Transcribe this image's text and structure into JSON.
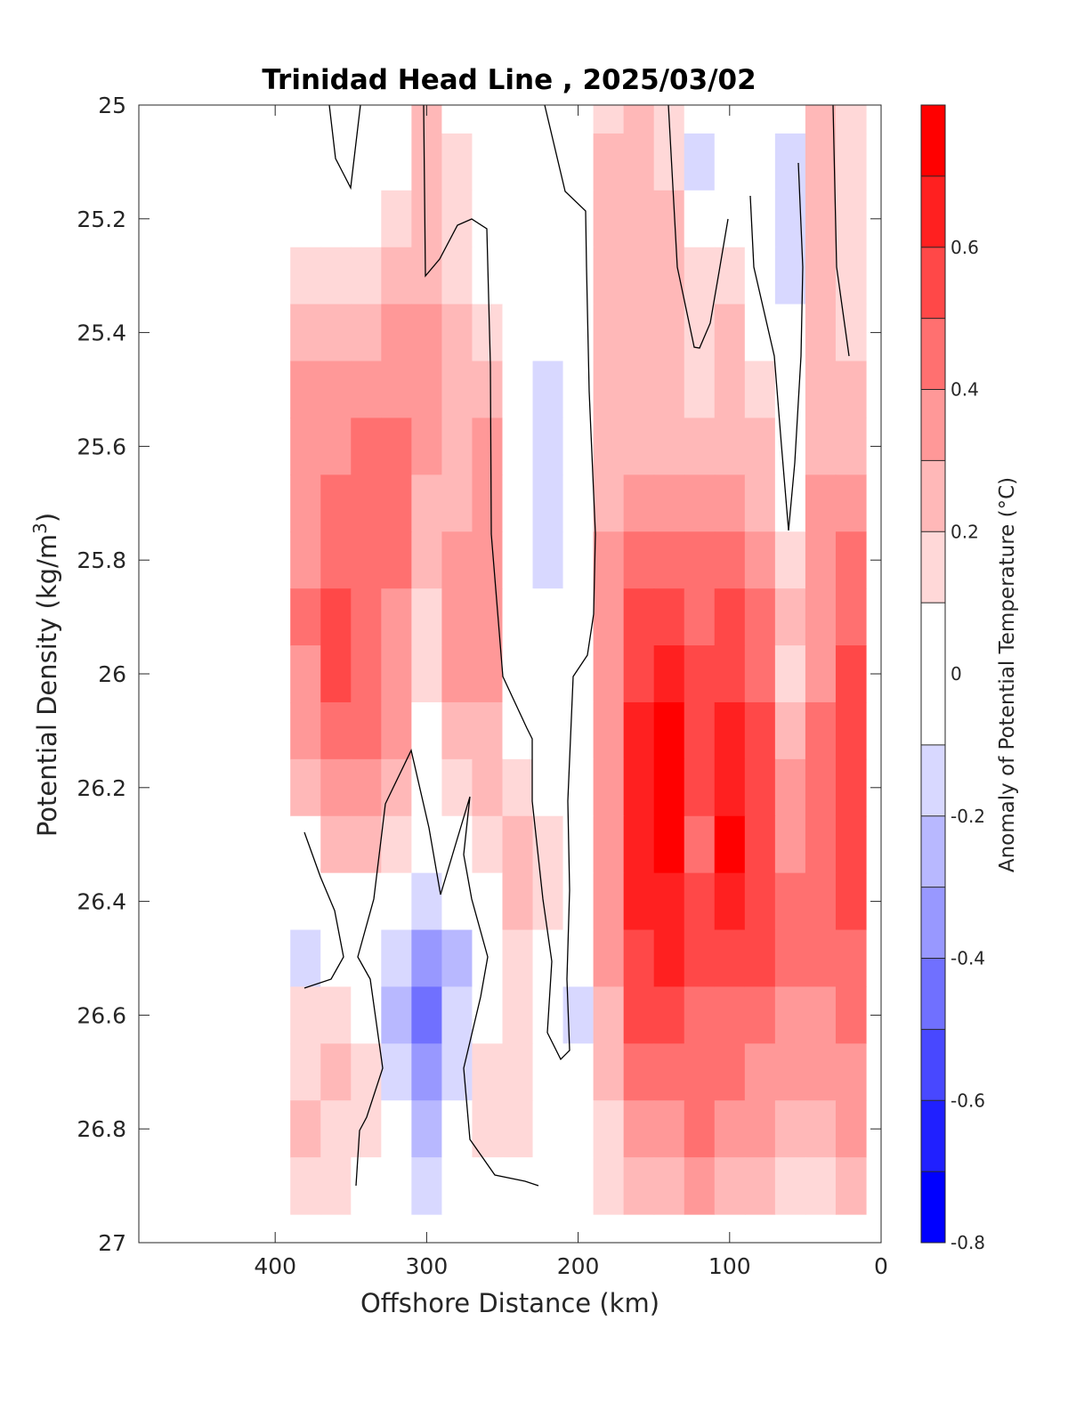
{
  "chart_data": {
    "type": "heatmap",
    "title": "Trinidad Head Line , 2025/03/02",
    "xlabel": "Offshore Distance (km)",
    "ylabel": "Potential Density (kg/m",
    "ylabel_sup": "3",
    "ylabel_close": ")",
    "colorbar_label": "Anomaly of Potential Temperature (°C)",
    "xlim": [
      490,
      0
    ],
    "ylim": [
      27,
      25
    ],
    "x_reversed": true,
    "y_reversed": true,
    "x_ticks": [
      400,
      300,
      200,
      100,
      0
    ],
    "x_tick_labels": [
      "400",
      "300",
      "200",
      "100",
      "0"
    ],
    "y_ticks": [
      25,
      25.2,
      25.4,
      25.6,
      25.8,
      26,
      26.2,
      26.4,
      26.6,
      26.8,
      27
    ],
    "y_tick_labels": [
      "25",
      "25.2",
      "25.4",
      "25.6",
      "25.8",
      "26",
      "26.2",
      "26.4",
      "26.6",
      "26.8",
      "27"
    ],
    "colorbar": {
      "range": [
        -0.8,
        0.8
      ],
      "levels": [
        -0.8,
        -0.7,
        -0.6,
        -0.5,
        -0.4,
        -0.3,
        -0.2,
        -0.1,
        0.1,
        0.2,
        0.3,
        0.4,
        0.5,
        0.6,
        0.7,
        0.8
      ],
      "colors": [
        "#0000ff",
        "#2020ff",
        "#4848ff",
        "#7070ff",
        "#9898ff",
        "#b8b8ff",
        "#d8d8ff",
        "#ffffff",
        "#ffd8d8",
        "#ffb8b8",
        "#ff9898",
        "#ff7070",
        "#ff4848",
        "#ff2020",
        "#ff0000"
      ],
      "tick_values": [
        -0.8,
        -0.6,
        -0.4,
        -0.2,
        0,
        0.2,
        0.4,
        0.6
      ],
      "tick_labels": [
        "-0.8",
        "-0.6",
        "-0.4",
        "-0.2",
        "0",
        "0.2",
        "0.4",
        "0.6"
      ]
    },
    "data_extent": {
      "x": [
        380,
        20
      ],
      "y": [
        25,
        26.9
      ]
    },
    "grid_x": [
      380,
      360,
      340,
      320,
      300,
      280,
      260,
      240,
      220,
      200,
      180,
      160,
      140,
      120,
      100,
      80,
      60,
      40,
      20
    ],
    "grid_y": [
      25.0,
      25.1,
      25.2,
      25.3,
      25.4,
      25.5,
      25.6,
      25.7,
      25.8,
      25.9,
      26.0,
      26.1,
      26.2,
      26.3,
      26.4,
      26.5,
      26.6,
      26.7,
      26.8,
      26.9
    ],
    "grid_values": [
      [
        null,
        null,
        null,
        0.02,
        0.2,
        0.05,
        0.05,
        0.02,
        0,
        0,
        0.15,
        0.2,
        0.18,
        -0.05,
        0.05,
        0.05,
        0.02,
        0.2,
        0.1
      ],
      [
        null,
        null,
        null,
        0.08,
        0.25,
        0.1,
        0.05,
        0.02,
        0,
        0,
        0.2,
        0.2,
        0.15,
        -0.2,
        0,
        0.02,
        -0.15,
        0.2,
        0.1
      ],
      [
        null,
        null,
        null,
        0.1,
        0.25,
        0.1,
        0.05,
        0,
        0,
        0,
        0.2,
        0.25,
        0.2,
        -0.05,
        0.02,
        0.02,
        -0.15,
        0.2,
        0.1
      ],
      [
        0.15,
        0.15,
        0.18,
        0.2,
        0.25,
        0.15,
        0.05,
        0,
        0,
        0,
        0.2,
        0.2,
        0.25,
        0.1,
        0.15,
        0.05,
        -0.15,
        0.2,
        0.1
      ],
      [
        0.2,
        0.25,
        0.25,
        0.3,
        0.3,
        0.2,
        0.15,
        0.05,
        -0.08,
        0,
        0.2,
        0.2,
        0.25,
        0.15,
        0.2,
        0.08,
        0,
        0.2,
        0.15
      ],
      [
        0.3,
        0.3,
        0.3,
        0.35,
        0.3,
        0.22,
        0.25,
        0.05,
        -0.15,
        -0.05,
        0.2,
        0.25,
        0.25,
        0.18,
        0.2,
        0.15,
        0.02,
        0.2,
        0.2
      ],
      [
        0.35,
        0.35,
        0.4,
        0.4,
        0.3,
        0.25,
        0.3,
        0.05,
        -0.2,
        -0.05,
        0.22,
        0.28,
        0.25,
        0.2,
        0.25,
        0.2,
        0,
        0.25,
        0.25
      ],
      [
        0.35,
        0.4,
        0.45,
        0.42,
        0.25,
        0.25,
        0.32,
        0.05,
        -0.2,
        -0.05,
        0.25,
        0.35,
        0.3,
        0.3,
        0.35,
        0.25,
        0.05,
        0.3,
        0.35
      ],
      [
        0.35,
        0.45,
        0.45,
        0.4,
        0.2,
        0.3,
        0.35,
        0.05,
        -0.15,
        -0.05,
        0.3,
        0.4,
        0.4,
        0.4,
        0.45,
        0.3,
        0.15,
        0.35,
        0.4
      ],
      [
        0.4,
        0.5,
        0.45,
        0.35,
        0.15,
        0.3,
        0.35,
        0.05,
        -0.1,
        -0.1,
        0.35,
        0.5,
        0.5,
        0.45,
        0.5,
        0.4,
        0.2,
        0.35,
        0.45
      ],
      [
        0.35,
        0.5,
        0.45,
        0.35,
        0.1,
        0.3,
        0.3,
        0.05,
        0,
        0,
        0.35,
        0.55,
        0.6,
        0.5,
        0.55,
        0.45,
        0.15,
        0.35,
        0.5
      ],
      [
        0.3,
        0.45,
        0.4,
        0.3,
        0.05,
        0.2,
        0.25,
        0.05,
        0,
        0,
        0.35,
        0.6,
        0.7,
        0.55,
        0.65,
        0.55,
        0.25,
        0.4,
        0.5
      ],
      [
        0.2,
        0.35,
        0.35,
        0.25,
        0.05,
        0.15,
        0.2,
        0.1,
        0.05,
        0,
        0.3,
        0.6,
        0.7,
        0.5,
        0.65,
        0.55,
        0.3,
        0.4,
        0.5
      ],
      [
        0.05,
        0.25,
        0.25,
        0.1,
        -0.1,
        0.05,
        0.1,
        0.2,
        0.1,
        0,
        0.3,
        0.65,
        0.72,
        0.45,
        0.7,
        0.5,
        0.3,
        0.45,
        0.5
      ],
      [
        -0.1,
        0,
        0.05,
        -0.05,
        -0.2,
        -0.1,
        0.05,
        0.2,
        0.1,
        0,
        0.3,
        0.6,
        0.65,
        0.5,
        0.65,
        0.5,
        0.4,
        0.45,
        0.5
      ],
      [
        -0.2,
        -0.05,
        0,
        -0.2,
        -0.35,
        -0.25,
        0,
        0.15,
        0.05,
        -0.1,
        0.3,
        0.55,
        0.6,
        0.55,
        0.5,
        0.5,
        0.4,
        0.4,
        0.45
      ],
      [
        0.1,
        0.15,
        0.05,
        -0.25,
        -0.45,
        -0.2,
        0.05,
        0.1,
        0,
        -0.15,
        0.25,
        0.5,
        0.55,
        0.45,
        0.45,
        0.45,
        0.35,
        0.35,
        0.45
      ],
      [
        0.15,
        0.2,
        0.15,
        -0.15,
        -0.35,
        -0.15,
        0.1,
        0.15,
        0.05,
        0,
        0.2,
        0.4,
        0.45,
        0.4,
        0.45,
        0.35,
        0.3,
        0.3,
        0.35
      ],
      [
        0.2,
        0.15,
        0.1,
        -0.1,
        -0.25,
        -0.1,
        0.15,
        0.15,
        0.05,
        0,
        0.15,
        0.3,
        0.35,
        0.4,
        0.35,
        0.3,
        0.25,
        0.25,
        0.3
      ],
      [
        0.15,
        0.1,
        0.05,
        -0.05,
        -0.15,
        -0.05,
        0.05,
        0.05,
        0,
        0,
        0.1,
        0.2,
        0.25,
        0.3,
        0.25,
        0.2,
        0.15,
        0.15,
        0.2
      ]
    ]
  }
}
